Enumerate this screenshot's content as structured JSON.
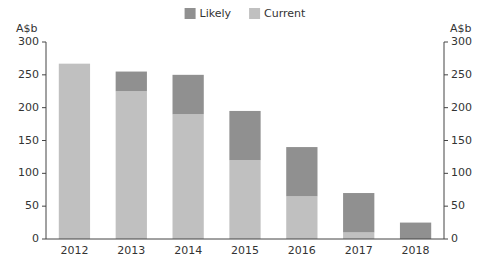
{
  "chart_data": {
    "type": "bar",
    "stacked": true,
    "categories": [
      "2012",
      "2013",
      "2014",
      "2015",
      "2016",
      "2017",
      "2018"
    ],
    "series": [
      {
        "name": "Current",
        "color": "#c0c0c0",
        "values": [
          267,
          225,
          190,
          120,
          65,
          10,
          0
        ]
      },
      {
        "name": "Likely",
        "color": "#909090",
        "values": [
          0,
          30,
          60,
          75,
          75,
          60,
          25
        ]
      }
    ],
    "ylabel": "A$b",
    "y2label": "A$b",
    "ylim": [
      0,
      300
    ],
    "yticks": [
      0,
      50,
      100,
      150,
      200,
      250,
      300
    ],
    "y2lim": [
      0,
      300
    ],
    "y2ticks": [
      0,
      50,
      100,
      150,
      200,
      250,
      300
    ],
    "grid": false,
    "legend": "top"
  }
}
